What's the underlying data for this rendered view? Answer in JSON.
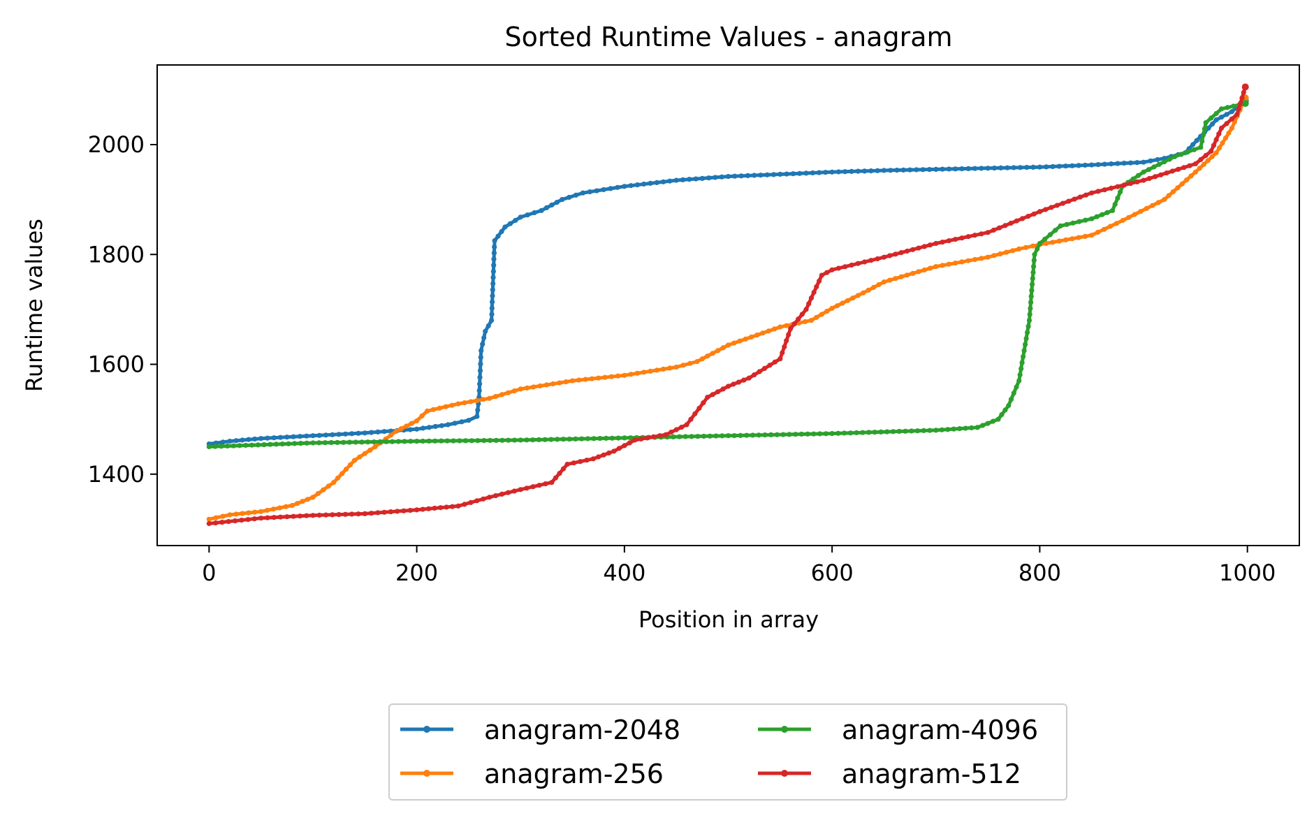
{
  "chart_data": {
    "type": "line",
    "title": "Sorted Runtime Values - anagram",
    "xlabel": "Position in array",
    "ylabel": "Runtime values",
    "xlim": [
      -50,
      1050
    ],
    "ylim": [
      1270,
      2145
    ],
    "xticks": [
      0,
      200,
      400,
      600,
      800,
      1000
    ],
    "yticks": [
      1400,
      1600,
      1800,
      2000
    ],
    "grid": false,
    "legend_position": "bottom-center",
    "legend_columns": 2,
    "series": [
      {
        "name": "anagram-2048",
        "color": "#1f77b4",
        "points": [
          [
            0,
            1455
          ],
          [
            20,
            1460
          ],
          [
            50,
            1465
          ],
          [
            100,
            1470
          ],
          [
            150,
            1475
          ],
          [
            200,
            1482
          ],
          [
            230,
            1490
          ],
          [
            250,
            1498
          ],
          [
            258,
            1505
          ],
          [
            260,
            1540
          ],
          [
            262,
            1625
          ],
          [
            266,
            1660
          ],
          [
            272,
            1680
          ],
          [
            275,
            1825
          ],
          [
            285,
            1850
          ],
          [
            300,
            1868
          ],
          [
            320,
            1880
          ],
          [
            340,
            1900
          ],
          [
            360,
            1912
          ],
          [
            380,
            1918
          ],
          [
            400,
            1924
          ],
          [
            450,
            1935
          ],
          [
            500,
            1942
          ],
          [
            550,
            1946
          ],
          [
            600,
            1950
          ],
          [
            650,
            1953
          ],
          [
            700,
            1955
          ],
          [
            750,
            1957
          ],
          [
            800,
            1959
          ],
          [
            850,
            1963
          ],
          [
            900,
            1968
          ],
          [
            920,
            1975
          ],
          [
            940,
            1985
          ],
          [
            955,
            2015
          ],
          [
            970,
            2045
          ],
          [
            985,
            2060
          ],
          [
            998,
            2080
          ]
        ]
      },
      {
        "name": "anagram-256",
        "color": "#ff7f0e",
        "points": [
          [
            0,
            1318
          ],
          [
            20,
            1326
          ],
          [
            50,
            1332
          ],
          [
            80,
            1343
          ],
          [
            100,
            1358
          ],
          [
            120,
            1385
          ],
          [
            140,
            1425
          ],
          [
            160,
            1450
          ],
          [
            180,
            1478
          ],
          [
            200,
            1497
          ],
          [
            210,
            1515
          ],
          [
            240,
            1528
          ],
          [
            270,
            1538
          ],
          [
            300,
            1555
          ],
          [
            350,
            1570
          ],
          [
            400,
            1580
          ],
          [
            450,
            1595
          ],
          [
            470,
            1605
          ],
          [
            500,
            1635
          ],
          [
            550,
            1668
          ],
          [
            580,
            1680
          ],
          [
            600,
            1702
          ],
          [
            630,
            1730
          ],
          [
            650,
            1750
          ],
          [
            700,
            1778
          ],
          [
            750,
            1795
          ],
          [
            780,
            1810
          ],
          [
            800,
            1818
          ],
          [
            850,
            1835
          ],
          [
            880,
            1862
          ],
          [
            920,
            1900
          ],
          [
            950,
            1950
          ],
          [
            970,
            1985
          ],
          [
            985,
            2030
          ],
          [
            998,
            2085
          ]
        ]
      },
      {
        "name": "anagram-4096",
        "color": "#2ca02c",
        "points": [
          [
            0,
            1450
          ],
          [
            100,
            1457
          ],
          [
            200,
            1460
          ],
          [
            300,
            1462
          ],
          [
            400,
            1466
          ],
          [
            500,
            1470
          ],
          [
            600,
            1474
          ],
          [
            700,
            1480
          ],
          [
            740,
            1485
          ],
          [
            760,
            1500
          ],
          [
            770,
            1525
          ],
          [
            780,
            1570
          ],
          [
            785,
            1625
          ],
          [
            790,
            1680
          ],
          [
            795,
            1800
          ],
          [
            800,
            1820
          ],
          [
            820,
            1852
          ],
          [
            850,
            1865
          ],
          [
            870,
            1880
          ],
          [
            880,
            1925
          ],
          [
            900,
            1950
          ],
          [
            930,
            1978
          ],
          [
            955,
            1995
          ],
          [
            960,
            2040
          ],
          [
            975,
            2065
          ],
          [
            998,
            2075
          ]
        ]
      },
      {
        "name": "anagram-512",
        "color": "#d62728",
        "points": [
          [
            0,
            1310
          ],
          [
            50,
            1320
          ],
          [
            100,
            1325
          ],
          [
            150,
            1328
          ],
          [
            200,
            1335
          ],
          [
            240,
            1342
          ],
          [
            270,
            1358
          ],
          [
            300,
            1372
          ],
          [
            330,
            1385
          ],
          [
            345,
            1418
          ],
          [
            370,
            1428
          ],
          [
            390,
            1442
          ],
          [
            410,
            1462
          ],
          [
            440,
            1472
          ],
          [
            460,
            1490
          ],
          [
            480,
            1540
          ],
          [
            500,
            1560
          ],
          [
            520,
            1575
          ],
          [
            550,
            1610
          ],
          [
            560,
            1665
          ],
          [
            575,
            1700
          ],
          [
            590,
            1762
          ],
          [
            600,
            1772
          ],
          [
            650,
            1795
          ],
          [
            700,
            1820
          ],
          [
            750,
            1840
          ],
          [
            800,
            1878
          ],
          [
            850,
            1912
          ],
          [
            900,
            1935
          ],
          [
            950,
            1965
          ],
          [
            965,
            1988
          ],
          [
            975,
            2030
          ],
          [
            990,
            2055
          ],
          [
            998,
            2105
          ]
        ]
      }
    ]
  }
}
